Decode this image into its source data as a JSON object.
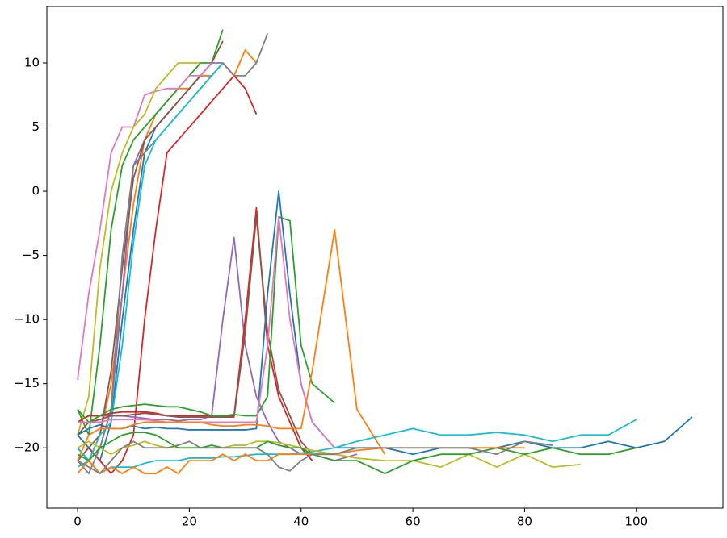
{
  "chart_data": {
    "type": "line",
    "x": [
      0,
      2,
      4,
      6,
      8,
      10,
      12,
      14,
      16,
      18,
      20,
      22,
      24,
      26,
      28,
      30,
      32,
      34,
      36,
      38,
      40,
      42,
      46,
      50,
      55,
      60,
      65,
      70,
      75,
      80,
      85,
      90,
      95,
      100,
      105,
      110
    ],
    "xlim": [
      -5.5,
      115.5
    ],
    "xticks": [
      0,
      20,
      40,
      60,
      80,
      100
    ],
    "ylim": [
      -24.7,
      14.4
    ],
    "yticks": [
      {
        "value": -20,
        "label": "−20"
      },
      {
        "value": -15,
        "label": "−15"
      },
      {
        "value": -10,
        "label": "−10"
      },
      {
        "value": -5,
        "label": "−5"
      },
      0,
      5,
      10
    ],
    "series": [
      {
        "color": "#1f77b4",
        "values": [
          -19,
          -20,
          -21,
          -18,
          -10,
          -3,
          3,
          5,
          6,
          7,
          8,
          9,
          9,
          10,
          null,
          null,
          null,
          null,
          null,
          null,
          null,
          null,
          null,
          null,
          null,
          null,
          null,
          null,
          null,
          null,
          null,
          null,
          null,
          null,
          null,
          null
        ]
      },
      {
        "color": "#ff7f0e",
        "values": [
          -20,
          -21,
          -19,
          -15,
          -8,
          -1,
          4,
          6,
          7,
          8,
          8,
          9,
          9,
          10,
          9,
          11,
          10,
          null,
          null,
          null,
          null,
          null,
          null,
          null,
          null,
          null,
          null,
          null,
          null,
          null,
          null,
          null,
          null,
          null,
          null,
          null
        ]
      },
      {
        "color": "#2ca02c",
        "values": [
          -17,
          -19,
          -12,
          -3,
          2,
          4,
          5,
          6,
          7,
          8,
          9,
          10,
          10,
          12.6,
          null,
          null,
          null,
          null,
          null,
          null,
          null,
          null,
          null,
          null,
          null,
          null,
          null,
          null,
          null,
          null,
          null,
          null,
          null,
          null,
          null,
          null
        ]
      },
      {
        "color": "#d62728",
        "values": [
          -21,
          -20,
          -21,
          -22,
          -21,
          -19,
          -10,
          -3,
          3,
          4,
          5,
          6,
          7,
          8,
          9,
          8,
          6,
          null,
          null,
          null,
          null,
          null,
          null,
          null,
          null,
          null,
          null,
          null,
          null,
          null,
          null,
          null,
          null,
          null,
          null,
          null
        ]
      },
      {
        "color": "#9467bd",
        "values": [
          -20,
          -21,
          -20,
          -17,
          -8,
          2,
          4,
          5,
          6,
          7,
          8,
          9,
          10,
          10,
          null,
          null,
          null,
          null,
          null,
          null,
          null,
          null,
          null,
          null,
          null,
          null,
          null,
          null,
          null,
          null,
          null,
          null,
          null,
          null,
          null,
          null
        ]
      },
      {
        "color": "#8c564b",
        "values": [
          -21,
          -20,
          -19,
          -14,
          -6,
          1,
          4,
          5,
          6,
          7,
          8,
          9,
          10,
          11.7,
          null,
          null,
          null,
          null,
          null,
          null,
          null,
          null,
          null,
          null,
          null,
          null,
          null,
          null,
          null,
          null,
          null,
          null,
          null,
          null,
          null,
          null
        ]
      },
      {
        "color": "#e377c2",
        "values": [
          -14.7,
          -8,
          -3,
          3,
          5,
          5,
          7.5,
          7.8,
          8,
          8,
          9,
          9,
          10,
          null,
          null,
          null,
          null,
          null,
          null,
          null,
          null,
          null,
          null,
          null,
          null,
          null,
          null,
          null,
          null,
          null,
          null,
          null,
          null,
          null,
          null,
          null
        ]
      },
      {
        "color": "#7f7f7f",
        "values": [
          -21,
          -22,
          -20,
          -17,
          -5,
          2,
          3,
          4,
          5,
          6,
          7,
          8,
          9,
          10,
          9,
          9,
          10,
          12.3,
          null,
          null,
          null,
          null,
          null,
          null,
          null,
          null,
          null,
          null,
          null,
          null,
          null,
          null,
          null,
          null,
          null,
          null
        ]
      },
      {
        "color": "#bcbd22",
        "values": [
          -19,
          -16,
          -6,
          0,
          3,
          5,
          6,
          8,
          9,
          10,
          10,
          10,
          null,
          null,
          null,
          null,
          null,
          null,
          null,
          null,
          null,
          null,
          null,
          null,
          null,
          null,
          null,
          null,
          null,
          null,
          null,
          null,
          null,
          null,
          null,
          null
        ]
      },
      {
        "color": "#17becf",
        "values": [
          -20,
          -21,
          -19,
          -18,
          -12,
          -4,
          2,
          4,
          5,
          6,
          7,
          8,
          9,
          10,
          null,
          null,
          null,
          null,
          null,
          null,
          null,
          null,
          null,
          null,
          null,
          null,
          null,
          null,
          null,
          null,
          null,
          null,
          null,
          null,
          null,
          null
        ]
      },
      {
        "color": "#9467bd",
        "values": [
          -18,
          -17.5,
          -17.5,
          -17.5,
          -17.5,
          -17.6,
          -17.7,
          -17.8,
          -17.8,
          -17.9,
          -17.8,
          -17.8,
          -17.5,
          -10,
          -3.6,
          -12,
          -16,
          -18,
          -19.5,
          -20,
          -20.5,
          -20.5,
          -21,
          -20.5,
          null,
          null,
          null,
          null,
          null,
          null,
          null,
          null,
          null,
          null,
          null,
          null
        ]
      },
      {
        "color": "#d62728",
        "values": [
          -18,
          -17.5,
          -17.5,
          -17.3,
          -17.2,
          -17.2,
          -17.2,
          -17.3,
          -17.5,
          -17.5,
          -17.5,
          -17.5,
          -17.5,
          -17.5,
          -17.5,
          -10,
          -1.3,
          -12,
          -16,
          -18,
          -20,
          -21,
          null,
          null,
          null,
          null,
          null,
          null,
          null,
          null,
          null,
          null,
          null,
          null,
          null,
          null
        ]
      },
      {
        "color": "#8c564b",
        "values": [
          -19,
          -18,
          -17.8,
          -17.5,
          -17.5,
          -17.4,
          -17.3,
          -17.4,
          -17.5,
          -17.6,
          -17.6,
          -17.6,
          -17.6,
          -17.6,
          -17.6,
          -11,
          -2,
          -11,
          -15.5,
          -17.5,
          -19.5,
          -20.5,
          null,
          null,
          null,
          null,
          null,
          null,
          null,
          null,
          null,
          null,
          null,
          null,
          null,
          null
        ]
      },
      {
        "color": "#1f77b4",
        "values": [
          -19,
          -18.5,
          -18.2,
          -18.5,
          -18.5,
          -18.3,
          -18.5,
          -18.4,
          -18.5,
          -18.5,
          -18.6,
          -18.6,
          -18.6,
          -18.6,
          -18.6,
          -18.6,
          -18.5,
          -8,
          0,
          -8,
          -15,
          -18,
          -20,
          -20,
          -20,
          -20.5,
          -20,
          -20,
          -20,
          -19.5,
          -20,
          -20,
          -19.5,
          -20,
          -19.5,
          -17.6
        ]
      },
      {
        "color": "#2ca02c",
        "values": [
          -17,
          -18,
          -17.5,
          -17,
          -16.8,
          -16.7,
          -16.6,
          -16.7,
          -16.8,
          -16.8,
          -17,
          -17.2,
          -17.5,
          -17.5,
          -17.4,
          -17.5,
          -17.5,
          -16,
          -2,
          -2.3,
          -12,
          -15,
          -16.5,
          null,
          null,
          null,
          null,
          null,
          null,
          null,
          null,
          null,
          null,
          null,
          null,
          null
        ]
      },
      {
        "color": "#e377c2",
        "values": [
          -18,
          -18,
          -18,
          -17.8,
          -17.8,
          -17.8,
          -17.8,
          -17.9,
          -18,
          -18,
          -18,
          -18,
          -18,
          -18,
          -18,
          -18,
          -18,
          -12,
          -2,
          -10,
          -15,
          -18,
          -20,
          null,
          null,
          null,
          null,
          null,
          null,
          null,
          null,
          null,
          null,
          null,
          null,
          null
        ]
      },
      {
        "color": "#ff7f0e",
        "values": [
          -21,
          -19,
          -18.5,
          -18.5,
          -18.5,
          -18.2,
          -18,
          -18,
          -18,
          -18,
          -18,
          -18,
          -18.2,
          -18.3,
          -18.3,
          -18.2,
          -18.2,
          -18.3,
          -18.5,
          -18.5,
          -18.5,
          -14,
          -3,
          -17,
          -20.5,
          null,
          null,
          null,
          null,
          null,
          null,
          null,
          null,
          null,
          null,
          null
        ]
      },
      {
        "color": "#17becf",
        "values": [
          -21.5,
          -21,
          -22,
          -21.5,
          -21.5,
          -21.5,
          -21.2,
          -21,
          -21,
          -21,
          -20.8,
          -20.8,
          -20.8,
          -20.7,
          -20.7,
          -20.6,
          -20.5,
          -20.5,
          -20.5,
          -20.5,
          -20.4,
          -20.3,
          -20,
          -19.5,
          -19,
          -18.5,
          -19,
          -19,
          -18.8,
          -19,
          -19.5,
          -19,
          -19,
          -17.8,
          null,
          null
        ]
      },
      {
        "color": "#bcbd22",
        "values": [
          -20,
          -19.5,
          -20,
          -20.5,
          -20,
          -19.8,
          -19.5,
          -19.8,
          -20,
          -20,
          -20,
          -20,
          -20,
          -20,
          -19.8,
          -19.8,
          -19.5,
          -19.5,
          -19.6,
          -19.8,
          -20,
          -20.2,
          -20.5,
          -20.8,
          -21,
          -21,
          -21.5,
          -20.5,
          -21.5,
          -20.5,
          -21.5,
          -21.3,
          null,
          null,
          null,
          null
        ]
      },
      {
        "color": "#2ca02c",
        "values": [
          -20.5,
          -21,
          -20,
          -19.5,
          -19,
          -18.8,
          -18.8,
          -19,
          -19.5,
          -20,
          -20,
          -20,
          -19.8,
          -20,
          -20,
          -20,
          -20,
          -19.5,
          -19.8,
          -20,
          -20,
          -20.5,
          -21,
          -21,
          -22,
          -21,
          -20.5,
          -20.5,
          -20,
          -20.5,
          -20,
          -20.5,
          -20.5,
          -20,
          null,
          null
        ]
      },
      {
        "color": "#ff7f0e",
        "values": [
          -22,
          -21,
          -22,
          -21.5,
          -22,
          -21.5,
          -22,
          -22,
          -21.5,
          -22,
          -21,
          -21,
          -21,
          -20.5,
          -21,
          -20.5,
          -21,
          -21,
          -20.5,
          -20.5,
          -20.5,
          -20.5,
          -20.5,
          -20.2,
          -20,
          -20,
          -20,
          -20,
          -20,
          -20,
          null,
          null,
          null,
          null,
          null,
          null
        ]
      },
      {
        "color": "#7f7f7f",
        "values": [
          -21,
          -21.5,
          -22,
          -21,
          -20,
          -19.5,
          -20,
          -20,
          -20,
          -19.8,
          -19.5,
          -20,
          -20,
          -20,
          -20,
          -20,
          -20,
          -20.5,
          -21.5,
          -21.8,
          -21,
          -20.5,
          -20.5,
          -20,
          -20,
          -20,
          -20,
          -20,
          -20.5,
          -19.5,
          -19.8,
          null,
          null,
          null,
          null,
          null
        ]
      }
    ]
  }
}
